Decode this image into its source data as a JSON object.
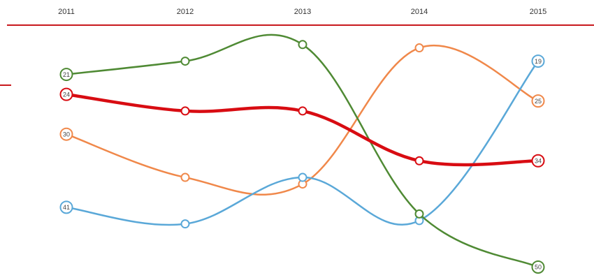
{
  "chart_data": {
    "type": "line",
    "x": [
      "2011",
      "2012",
      "2013",
      "2014",
      "2015"
    ],
    "y_inverted": true,
    "series": [
      {
        "color": "#4f8a34",
        "labels_shown": [
          21,
          null,
          null,
          null,
          50
        ],
        "values": [
          21,
          19,
          16.5,
          42,
          50
        ]
      },
      {
        "color": "#d80c12",
        "labels_shown": [
          24,
          null,
          null,
          null,
          34
        ],
        "values": [
          24,
          26.5,
          26.5,
          34,
          34
        ]
      },
      {
        "color": "#f0884a",
        "labels_shown": [
          30,
          null,
          null,
          null,
          25
        ],
        "values": [
          30,
          36.5,
          37.5,
          17,
          25
        ]
      },
      {
        "color": "#5aa8d8",
        "labels_shown": [
          41,
          null,
          null,
          null,
          19
        ],
        "values": [
          41,
          43.5,
          36.5,
          43,
          19
        ]
      }
    ],
    "ylim": [
      14,
      51
    ],
    "grid": false,
    "legend": "none"
  },
  "colors": {
    "axis_line": "#c8191d",
    "background": "#ffffff"
  }
}
